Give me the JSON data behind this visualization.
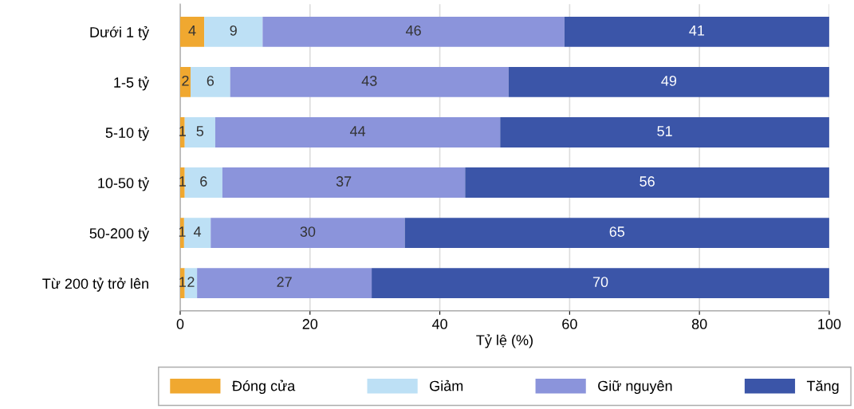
{
  "chart_data": {
    "type": "bar",
    "orientation": "horizontal",
    "stacked": true,
    "xlabel": "Tỷ lệ (%)",
    "categories": [
      "Dưới 1 tỷ",
      "1-5 tỷ",
      "5-10 tỷ",
      "10-50 tỷ",
      "50-200 tỷ",
      "Từ 200 tỷ trở lên"
    ],
    "series": [
      {
        "name": "Đóng cửa",
        "color": "#f0a830",
        "values": [
          3.7,
          1.6,
          0.7,
          0.7,
          0.6,
          0.7
        ],
        "value_labels": [
          "4",
          "2",
          "1",
          "1",
          "1",
          "1"
        ]
      },
      {
        "name": "Giảm",
        "color": "#bde0f5",
        "values": [
          9.0,
          6.1,
          4.7,
          5.8,
          4.1,
          1.9
        ],
        "value_labels": [
          "9",
          "6",
          "5",
          "6",
          "4",
          "2"
        ]
      },
      {
        "name": "Giữ nguyên",
        "color": "#8b94db",
        "values": [
          46.5,
          42.9,
          43.9,
          37.4,
          29.9,
          26.9
        ],
        "value_labels": [
          "46",
          "43",
          "44",
          "37",
          "30",
          "27"
        ]
      },
      {
        "name": "Tăng",
        "color": "#3b55a8",
        "values": [
          40.8,
          49.4,
          50.7,
          56.1,
          65.4,
          70.5
        ],
        "value_labels": [
          "41",
          "49",
          "51",
          "56",
          "65",
          "70"
        ]
      }
    ],
    "xlim": [
      0,
      100
    ],
    "xticks": [
      0,
      20,
      40,
      60,
      80,
      100
    ],
    "grid": "x",
    "legend": "bottom"
  }
}
